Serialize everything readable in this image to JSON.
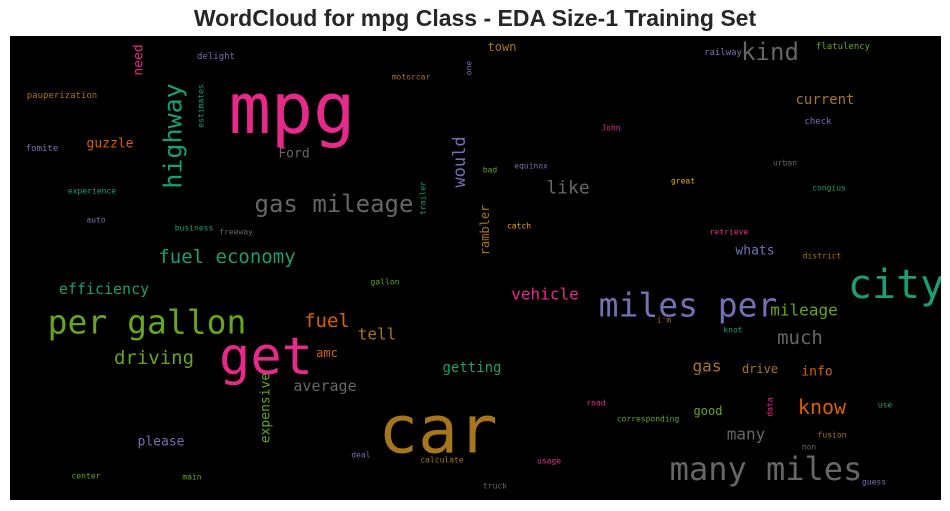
{
  "chart_data": {
    "type": "wordcloud",
    "title": "WordCloud for mpg Class - EDA Size-1 Training Set",
    "background": "#000000",
    "palette": {
      "green": "#1b9e77",
      "orange": "#d95f02",
      "purple": "#7570b3",
      "pink": "#e7298a",
      "lime": "#66a61e",
      "gold": "#e6ab02",
      "brown": "#a6761d",
      "gray": "#666666"
    },
    "words": [
      {
        "text": "mpg",
        "color": "pink"
      },
      {
        "text": "car",
        "color": "brown"
      },
      {
        "text": "get",
        "color": "pink"
      },
      {
        "text": "city",
        "color": "green"
      },
      {
        "text": "miles per",
        "color": "purple"
      },
      {
        "text": "per gallon",
        "color": "lime"
      },
      {
        "text": "many miles",
        "color": "gray"
      },
      {
        "text": "highway",
        "color": "green"
      },
      {
        "text": "gas mileage",
        "color": "gray"
      },
      {
        "text": "kind",
        "color": "gray"
      },
      {
        "text": "fuel economy",
        "color": "green"
      },
      {
        "text": "driving",
        "color": "lime"
      },
      {
        "text": "fuel",
        "color": "orange"
      },
      {
        "text": "much",
        "color": "gray"
      },
      {
        "text": "mileage",
        "color": "lime"
      },
      {
        "text": "know",
        "color": "orange"
      },
      {
        "text": "like",
        "color": "gray"
      },
      {
        "text": "vehicle",
        "color": "pink"
      },
      {
        "text": "efficiency",
        "color": "green"
      },
      {
        "text": "would",
        "color": "purple"
      },
      {
        "text": "tell",
        "color": "brown"
      },
      {
        "text": "gas",
        "color": "brown"
      },
      {
        "text": "many",
        "color": "gray"
      },
      {
        "text": "average",
        "color": "gray"
      },
      {
        "text": "getting",
        "color": "green"
      },
      {
        "text": "current",
        "color": "brown"
      },
      {
        "text": "expensive",
        "color": "lime"
      },
      {
        "text": "need",
        "color": "pink"
      },
      {
        "text": "guzzle",
        "color": "orange"
      },
      {
        "text": "town",
        "color": "brown"
      },
      {
        "text": "Ford",
        "color": "gray"
      },
      {
        "text": "rambler",
        "color": "brown"
      },
      {
        "text": "whats",
        "color": "purple"
      },
      {
        "text": "please",
        "color": "purple"
      },
      {
        "text": "amc",
        "color": "orange"
      },
      {
        "text": "drive",
        "color": "brown"
      },
      {
        "text": "info",
        "color": "orange"
      },
      {
        "text": "good",
        "color": "lime"
      },
      {
        "text": "delight",
        "color": "purple"
      },
      {
        "text": "motorcar",
        "color": "brown"
      },
      {
        "text": "railway",
        "color": "purple"
      },
      {
        "text": "flatulency",
        "color": "lime"
      },
      {
        "text": "one",
        "color": "purple"
      },
      {
        "text": "estimates",
        "color": "green"
      },
      {
        "text": "pauperization",
        "color": "brown"
      },
      {
        "text": "John",
        "color": "pink"
      },
      {
        "text": "check",
        "color": "purple"
      },
      {
        "text": "fomite",
        "color": "purple"
      },
      {
        "text": "bad",
        "color": "lime"
      },
      {
        "text": "equinox",
        "color": "purple"
      },
      {
        "text": "urban",
        "color": "gray"
      },
      {
        "text": "experience",
        "color": "green"
      },
      {
        "text": "trailer",
        "color": "green"
      },
      {
        "text": "great",
        "color": "gold"
      },
      {
        "text": "congius",
        "color": "green"
      },
      {
        "text": "auto",
        "color": "purple"
      },
      {
        "text": "business",
        "color": "green"
      },
      {
        "text": "freeway",
        "color": "gray"
      },
      {
        "text": "catch",
        "color": "gold"
      },
      {
        "text": "retrieve",
        "color": "pink"
      },
      {
        "text": "district",
        "color": "brown"
      },
      {
        "text": "gallon",
        "color": "lime"
      },
      {
        "text": "i'm",
        "color": "brown"
      },
      {
        "text": "knot",
        "color": "green"
      },
      {
        "text": "road",
        "color": "pink"
      },
      {
        "text": "corresponding",
        "color": "lime"
      },
      {
        "text": "data",
        "color": "pink"
      },
      {
        "text": "use",
        "color": "green"
      },
      {
        "text": "fusion",
        "color": "brown"
      },
      {
        "text": "non",
        "color": "gray"
      },
      {
        "text": "deal",
        "color": "purple"
      },
      {
        "text": "calculate",
        "color": "brown"
      },
      {
        "text": "usage",
        "color": "pink"
      },
      {
        "text": "center",
        "color": "lime"
      },
      {
        "text": "main",
        "color": "lime"
      },
      {
        "text": "truck",
        "color": "gray"
      },
      {
        "text": "guess",
        "color": "purple"
      }
    ]
  }
}
